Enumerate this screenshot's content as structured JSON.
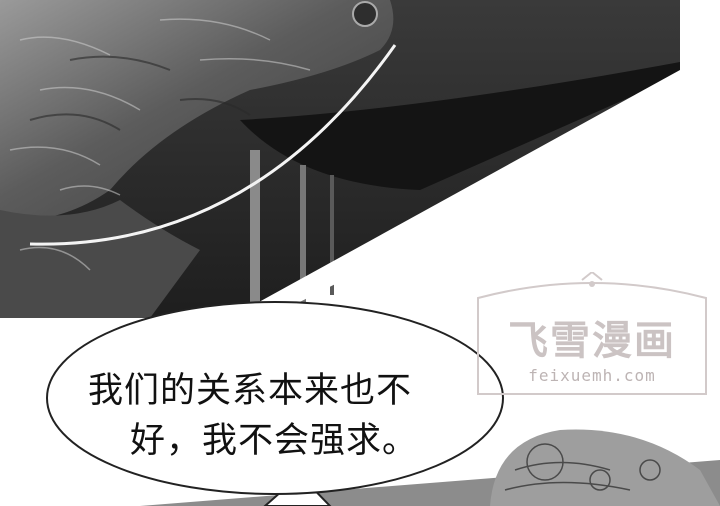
{
  "speech_bubble": {
    "line1": "我们的关系本来也不",
    "line2": "好，我不会强求。"
  },
  "watermark": {
    "title": "飞雪漫画",
    "url": "feixuemh.com"
  },
  "colors": {
    "panel_dark": "#2b2b2b",
    "panel_mid": "#6e6e6e",
    "bubble_fill": "#ffffff",
    "watermark": "#c9c1c1"
  }
}
